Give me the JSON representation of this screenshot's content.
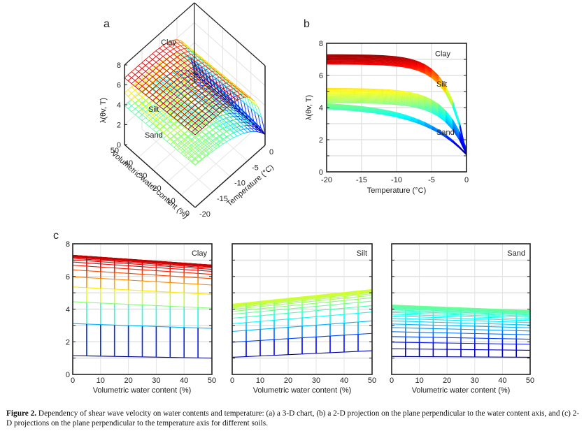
{
  "figure": {
    "caption_label": "Figure 2.",
    "caption_text": " Dependency of shear wave velocity on water contents and temperature: (a) a 3-D chart, (b) a 2-D projection on the plane perpendicular to the water content axis, and (c) 2-D projections on the plane perpendicular to the temperature axis for different soils."
  },
  "model": {
    "soils": [
      {
        "name": "Clay",
        "v_frozen_w0": 7.3,
        "v_frozen_w50": 6.7,
        "v_unfrozen_w0": 1.15,
        "v_unfrozen_w50": 1.0,
        "knee": 2.6
      },
      {
        "name": "Silt",
        "v_frozen_w0": 4.3,
        "v_frozen_w50": 5.2,
        "v_unfrozen_w0": 1.05,
        "v_unfrozen_w50": 1.45,
        "knee": 3.0
      },
      {
        "name": "Sand",
        "v_frozen_w0": 4.4,
        "v_frozen_w50": 4.05,
        "v_unfrozen_w0": 1.1,
        "v_unfrozen_w50": 1.05,
        "knee": 6.5
      }
    ]
  },
  "chart_data": [
    {
      "id": "a",
      "type": "surface3d",
      "panel_label": "a",
      "zlabel": "λ(θv, T)",
      "xlabel": "Volumetric water content (%)",
      "ylabel": "Temperature (°C)",
      "x_ticks": [
        "0",
        "10",
        "20",
        "30",
        "40",
        "50"
      ],
      "y_ticks": [
        "-20",
        "-15",
        "-10",
        "-5",
        "0"
      ],
      "z_ticks": [
        "0",
        "2",
        "4",
        "6",
        "8"
      ],
      "xlim": [
        0,
        50
      ],
      "ylim": [
        -20,
        0
      ],
      "zlim": [
        0,
        8
      ],
      "annotations": [
        "Clay",
        "Silt",
        "Sand"
      ]
    },
    {
      "id": "b",
      "type": "line",
      "panel_label": "b",
      "xlabel": "Temperature (°C)",
      "ylabel": "λ(θv, T)",
      "x_ticks": [
        "-20",
        "-15",
        "-10",
        "-5",
        "0"
      ],
      "y_ticks": [
        "0",
        "2",
        "4",
        "6",
        "8"
      ],
      "xlim": [
        -20,
        0
      ],
      "ylim": [
        0,
        8
      ],
      "grid": true,
      "annotations": [
        {
          "text": "Clay",
          "x": -4.5,
          "y": 7.2
        },
        {
          "text": "Silt",
          "x": -4.3,
          "y": 5.3
        },
        {
          "text": "Sand",
          "x": -4.3,
          "y": 2.3
        }
      ]
    },
    {
      "id": "c-clay",
      "type": "line",
      "panel_label": "c",
      "soil": "Clay",
      "xlabel": "Volumetric water content (%)",
      "x_ticks": [
        "0",
        "10",
        "20",
        "30",
        "40",
        "50"
      ],
      "y_ticks": [
        "0",
        "2",
        "4",
        "6",
        "8"
      ],
      "xlim": [
        0,
        50
      ],
      "ylim": [
        0,
        8
      ],
      "grid": true
    },
    {
      "id": "c-silt",
      "type": "line",
      "soil": "Silt",
      "xlabel": "Volumetric water content (%)",
      "x_ticks": [
        "0",
        "10",
        "20",
        "30",
        "40",
        "50"
      ],
      "xlim": [
        0,
        50
      ],
      "ylim": [
        0,
        8
      ],
      "grid": true
    },
    {
      "id": "c-sand",
      "type": "line",
      "soil": "Sand",
      "xlabel": "Volumetric water content (%)",
      "x_ticks": [
        "0",
        "10",
        "20",
        "30",
        "40",
        "50"
      ],
      "xlim": [
        0,
        50
      ],
      "ylim": [
        0,
        8
      ],
      "grid": true
    }
  ]
}
